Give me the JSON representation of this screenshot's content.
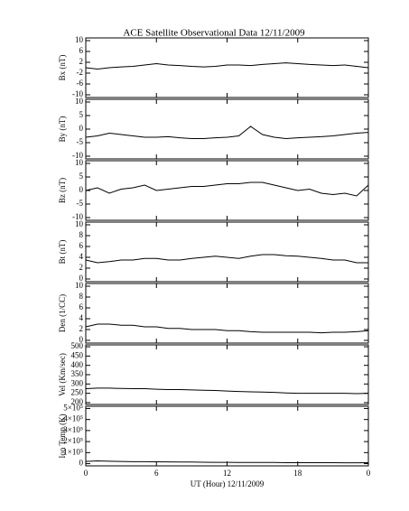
{
  "chart_data": [
    {
      "type": "line",
      "title": "ACE Satellite Observational Data   12/11/2009",
      "ylabel": "Bx (nT)",
      "color": "#000000",
      "x": [
        0,
        1,
        2,
        3,
        4,
        5,
        6,
        7,
        8,
        9,
        10,
        11,
        12,
        13,
        14,
        15,
        16,
        17,
        18,
        19,
        20,
        21,
        22,
        23,
        24
      ],
      "values": [
        0,
        -0.5,
        0,
        0.3,
        0.5,
        1,
        1.5,
        1,
        0.8,
        0.5,
        0.3,
        0.5,
        1,
        1,
        0.8,
        1.2,
        1.5,
        1.8,
        1.5,
        1.2,
        1,
        0.8,
        1,
        0.5,
        0
      ],
      "xlim": [
        0,
        24
      ],
      "xticks": [
        0,
        6,
        12,
        18,
        24
      ],
      "ylim": [
        -11,
        11
      ],
      "yticks": [
        -10,
        -6,
        -2,
        2,
        6,
        10
      ]
    },
    {
      "type": "line",
      "ylabel": "By (nT)",
      "color": "#000000",
      "x": [
        0,
        1,
        2,
        3,
        4,
        5,
        6,
        7,
        8,
        9,
        10,
        11,
        12,
        13,
        14,
        15,
        16,
        17,
        18,
        19,
        20,
        21,
        22,
        23,
        24
      ],
      "values": [
        -3,
        -2.5,
        -1.5,
        -2,
        -2.5,
        -3,
        -3,
        -2.8,
        -3.2,
        -3.5,
        -3.5,
        -3.2,
        -3,
        -2.5,
        1,
        -2,
        -3,
        -3.5,
        -3.2,
        -3,
        -2.8,
        -2.5,
        -2,
        -1.5,
        -1.2
      ],
      "xlim": [
        0,
        24
      ],
      "xticks": [
        0,
        6,
        12,
        18,
        24
      ],
      "ylim": [
        -11,
        11
      ],
      "yticks": [
        -10,
        -5,
        0,
        5,
        10
      ]
    },
    {
      "type": "line",
      "ylabel": "Bz (nT)",
      "color": "#000000",
      "x": [
        0,
        1,
        2,
        3,
        4,
        5,
        6,
        7,
        8,
        9,
        10,
        11,
        12,
        13,
        14,
        15,
        16,
        17,
        18,
        19,
        20,
        21,
        22,
        23,
        24
      ],
      "values": [
        0,
        1,
        -1,
        0.5,
        1,
        2,
        0,
        0.5,
        1,
        1.5,
        1.5,
        2,
        2.5,
        2.5,
        3,
        3,
        2,
        1,
        0,
        0.5,
        -1,
        -1.5,
        -1,
        -2,
        2
      ],
      "xlim": [
        0,
        24
      ],
      "xticks": [
        0,
        6,
        12,
        18,
        24
      ],
      "ylim": [
        -11,
        11
      ],
      "yticks": [
        -10,
        -5,
        0,
        5,
        10
      ]
    },
    {
      "type": "line",
      "ylabel": "Bt (nT)",
      "color": "#000000",
      "x": [
        0,
        1,
        2,
        3,
        4,
        5,
        6,
        7,
        8,
        9,
        10,
        11,
        12,
        13,
        14,
        15,
        16,
        17,
        18,
        19,
        20,
        21,
        22,
        23,
        24
      ],
      "values": [
        3.5,
        3,
        3.2,
        3.5,
        3.5,
        3.8,
        3.8,
        3.5,
        3.5,
        3.8,
        4,
        4.2,
        4,
        3.8,
        4.2,
        4.5,
        4.5,
        4.3,
        4.2,
        4,
        3.8,
        3.5,
        3.5,
        3,
        3
      ],
      "xlim": [
        0,
        24
      ],
      "xticks": [
        0,
        6,
        12,
        18,
        24
      ],
      "ylim": [
        -0.5,
        10.5
      ],
      "yticks": [
        0,
        2,
        4,
        6,
        8,
        10
      ]
    },
    {
      "type": "line",
      "ylabel": "Den (1/CC)",
      "color": "#000000",
      "x": [
        0,
        1,
        2,
        3,
        4,
        5,
        6,
        7,
        8,
        9,
        10,
        11,
        12,
        13,
        14,
        15,
        16,
        17,
        18,
        19,
        20,
        21,
        22,
        23,
        24
      ],
      "values": [
        2.5,
        3,
        3,
        2.8,
        2.8,
        2.5,
        2.5,
        2.2,
        2.2,
        2,
        2,
        2,
        1.8,
        1.8,
        1.6,
        1.5,
        1.5,
        1.5,
        1.5,
        1.5,
        1.4,
        1.5,
        1.5,
        1.6,
        1.8
      ],
      "xlim": [
        0,
        24
      ],
      "xticks": [
        0,
        6,
        12,
        18,
        24
      ],
      "ylim": [
        -0.5,
        10.5
      ],
      "yticks": [
        0,
        2,
        4,
        6,
        8,
        10
      ]
    },
    {
      "type": "line",
      "ylabel": "Vel (Km/sec)",
      "color": "#000000",
      "x": [
        0,
        1,
        2,
        3,
        4,
        5,
        6,
        7,
        8,
        9,
        10,
        11,
        12,
        13,
        14,
        15,
        16,
        17,
        18,
        19,
        20,
        21,
        22,
        23,
        24
      ],
      "values": [
        275,
        278,
        278,
        276,
        275,
        275,
        272,
        270,
        270,
        268,
        266,
        265,
        262,
        260,
        258,
        257,
        255,
        252,
        250,
        250,
        250,
        250,
        250,
        248,
        250
      ],
      "xlim": [
        0,
        24
      ],
      "xticks": [
        0,
        6,
        12,
        18,
        24
      ],
      "ylim": [
        190,
        510
      ],
      "yticks": [
        200,
        250,
        300,
        350,
        400,
        450,
        500
      ]
    },
    {
      "type": "line",
      "ylabel": "Ion Temp (K)",
      "xlabel": "UT (Hour)  12/11/2009",
      "color": "#000000",
      "x": [
        0,
        1,
        2,
        3,
        4,
        5,
        6,
        7,
        8,
        9,
        10,
        11,
        12,
        13,
        14,
        15,
        16,
        17,
        18,
        19,
        20,
        21,
        22,
        23,
        24
      ],
      "values": [
        20000,
        25000,
        22000,
        20000,
        18000,
        18000,
        17000,
        16000,
        15000,
        14000,
        13000,
        12000,
        12000,
        11000,
        11000,
        10000,
        10000,
        9000,
        9000,
        9000,
        9000,
        9000,
        8000,
        8000,
        9000
      ],
      "xlim": [
        0,
        24
      ],
      "xticks": [
        0,
        6,
        12,
        18,
        {
          "value": 24,
          "label": "0"
        }
      ],
      "ylim": [
        -20000,
        520000
      ],
      "yticks": [
        0,
        {
          "value": 100000,
          "label": "1×10⁵"
        },
        {
          "value": 200000,
          "label": "2×10⁵"
        },
        {
          "value": 300000,
          "label": "3×10⁵"
        },
        {
          "value": 400000,
          "label": "4×10⁵"
        },
        {
          "value": 500000,
          "label": "5×10⁵"
        }
      ]
    }
  ]
}
